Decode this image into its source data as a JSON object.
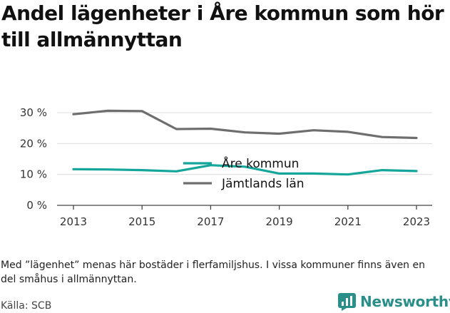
{
  "title": "Andel lägenheter i Åre kommun som hör till allmännyttan",
  "note": "Med ”lägenhet” menas här bostäder i flerfamiljshus. I vissa kommuner finns även en del småhus i allmännyttan.",
  "source": "Källa: SCB",
  "brand": {
    "name": "Newsworthy",
    "icon": "bar-chart-logo-icon",
    "color": "#2a8f89"
  },
  "chart_data": {
    "type": "line",
    "title": "Andel lägenheter i Åre kommun som hör till allmännyttan",
    "xlabel": "",
    "ylabel": "",
    "x": [
      2013,
      2014,
      2015,
      2016,
      2017,
      2018,
      2019,
      2020,
      2021,
      2022,
      2023
    ],
    "xticks": [
      2013,
      2015,
      2017,
      2019,
      2021,
      2023
    ],
    "xtick_labels": [
      "2013",
      "2015",
      "2017",
      "2019",
      "2021",
      "2023"
    ],
    "ylim": [
      0,
      30
    ],
    "yticks": [
      0,
      10,
      20,
      30
    ],
    "ytick_labels": [
      "0 %",
      "10 %",
      "20 %",
      "30 %"
    ],
    "grid": "horizontal",
    "legend": "center",
    "series": [
      {
        "name": "Åre kommun",
        "color": "#14a59b",
        "values": [
          11.7,
          11.6,
          11.4,
          11.0,
          13.0,
          12.5,
          10.3,
          10.3,
          10.0,
          11.4,
          11.1
        ]
      },
      {
        "name": "Jämtlands län",
        "color": "#6e6e6e",
        "values": [
          29.5,
          30.6,
          30.5,
          24.7,
          24.8,
          23.6,
          23.2,
          24.3,
          23.8,
          22.1,
          21.8
        ]
      }
    ]
  }
}
